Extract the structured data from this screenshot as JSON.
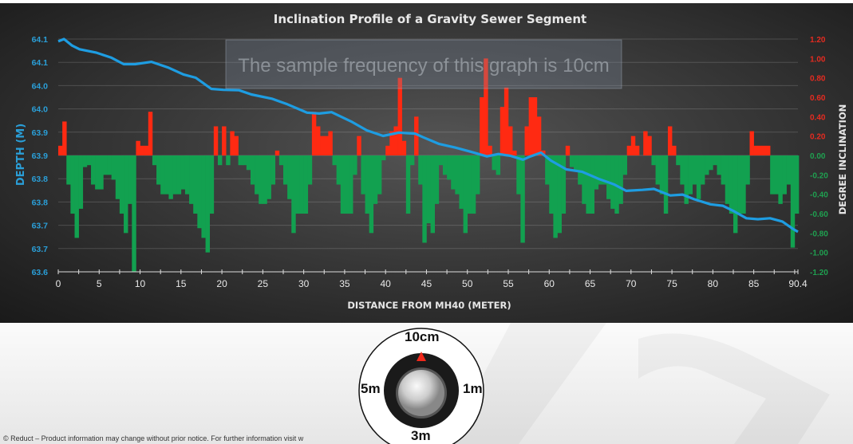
{
  "chart_data": {
    "type": "bar+line",
    "title": "Inclination Profile of a Gravity Sewer Segment",
    "annotation": "The sample frequency of this graph is 10cm",
    "xlabel": "DISTANCE FROM MH40 (METER)",
    "ylabel_left": "DEPTH (M)",
    "ylabel_right": "DEGREE INCLINATION",
    "xlim": [
      0,
      90.4
    ],
    "x_ticks": [
      "0",
      "5",
      "10",
      "15",
      "20",
      "25",
      "30",
      "35",
      "40",
      "45",
      "50",
      "55",
      "60",
      "65",
      "70",
      "75",
      "80",
      "85",
      "90.4"
    ],
    "ylim_left": [
      63.6,
      64.1
    ],
    "y_ticks_left": [
      "64.1",
      "64.1",
      "64.0",
      "64.0",
      "63.9",
      "63.9",
      "63.8",
      "63.8",
      "63.7",
      "63.7",
      "63.6"
    ],
    "ylim_right": [
      -1.2,
      1.2
    ],
    "y_ticks_right": [
      "1.20",
      "1.00",
      "0.80",
      "0.60",
      "0.40",
      "0.20",
      "0.00",
      "-0.20",
      "-0.40",
      "-0.60",
      "-0.80",
      "-1.00",
      "-1.20"
    ],
    "grid": true,
    "colors": {
      "depth_line": "#1e9de2",
      "positive": "#ff2a12",
      "negative": "#12a150",
      "left_axis": "#2a9fd8"
    },
    "depth": {
      "distance": [
        0,
        0.7,
        1.7,
        2.6,
        4.6,
        6.5,
        8,
        9.4,
        11.4,
        13.4,
        15.3,
        16.8,
        18.7,
        20.2,
        22.1,
        23.6,
        26.1,
        28,
        30.4,
        31.9,
        33.4,
        35.8,
        37.7,
        39.7,
        41.6,
        43.6,
        44.6,
        46.5,
        48.5,
        50.4,
        52.4,
        53.8,
        55.3,
        56.8,
        57.7,
        59,
        60.2,
        62.1,
        64,
        66,
        67.9,
        69.4,
        71.4,
        72.8,
        74.8,
        76.3,
        77.7,
        79.7,
        81.2,
        82.6,
        84.1,
        85.5,
        87,
        88.5,
        89.9,
        90.4
      ],
      "values": [
        64.095,
        64.1,
        64.086,
        64.078,
        64.071,
        64.06,
        64.046,
        64.046,
        64.051,
        64.039,
        64.024,
        64.017,
        63.993,
        63.991,
        63.99,
        63.981,
        63.972,
        63.96,
        63.942,
        63.94,
        63.943,
        63.923,
        63.904,
        63.892,
        63.899,
        63.897,
        63.889,
        63.875,
        63.867,
        63.858,
        63.848,
        63.853,
        63.849,
        63.841,
        63.848,
        63.856,
        63.839,
        63.82,
        63.815,
        63.8,
        63.788,
        63.774,
        63.776,
        63.778,
        63.764,
        63.766,
        63.756,
        63.745,
        63.742,
        63.73,
        63.715,
        63.713,
        63.715,
        63.708,
        63.691,
        63.686
      ]
    },
    "inclination": {
      "distance": [
        0,
        0.5,
        1,
        1.5,
        2,
        2.5,
        3,
        3.5,
        4,
        4.5,
        5,
        5.5,
        6,
        6.5,
        7,
        7.5,
        8,
        8.5,
        9,
        9.5,
        10,
        10.5,
        11,
        11.5,
        12,
        12.5,
        13,
        13.5,
        14,
        14.5,
        15,
        15.5,
        16,
        16.5,
        17,
        17.5,
        18,
        18.5,
        19,
        19.5,
        20,
        20.5,
        21,
        21.5,
        22,
        22.5,
        23,
        23.5,
        24,
        24.5,
        25,
        25.5,
        26,
        26.5,
        27,
        27.5,
        28,
        28.5,
        29,
        29.5,
        30,
        30.5,
        31,
        31.5,
        32,
        32.5,
        33,
        33.5,
        34,
        34.5,
        35,
        35.5,
        36,
        36.5,
        37,
        37.5,
        38,
        38.5,
        39,
        39.5,
        40,
        40.5,
        41,
        41.5,
        42,
        42.5,
        43,
        43.5,
        44,
        44.5,
        45,
        45.5,
        46,
        46.5,
        47,
        47.5,
        48,
        48.5,
        49,
        49.5,
        50,
        50.5,
        51,
        51.5,
        52,
        52.5,
        53,
        53.5,
        54,
        54.5,
        55,
        55.5,
        56,
        56.5,
        57,
        57.5,
        58,
        58.5,
        59,
        59.5,
        60,
        60.5,
        61,
        61.5,
        62,
        62.5,
        63,
        63.5,
        64,
        64.5,
        65,
        65.5,
        66,
        66.5,
        67,
        67.5,
        68,
        68.5,
        69,
        69.5,
        70,
        70.5,
        71,
        71.5,
        72,
        72.5,
        73,
        73.5,
        74,
        74.5,
        75,
        75.5,
        76,
        76.5,
        77,
        77.5,
        78,
        78.5,
        79,
        79.5,
        80,
        80.5,
        81,
        81.5,
        82,
        82.5,
        83,
        83.5,
        84,
        84.5,
        85,
        85.5,
        86,
        86.5,
        87,
        87.5,
        88,
        88.5,
        89,
        89.5,
        90
      ],
      "values": [
        0.1,
        0.35,
        -0.3,
        -0.6,
        -0.85,
        -0.55,
        -0.12,
        -0.1,
        -0.3,
        -0.35,
        -0.35,
        -0.2,
        -0.2,
        -0.25,
        -0.45,
        -0.6,
        -0.8,
        -0.5,
        -1.2,
        0.15,
        0.1,
        0.1,
        0.45,
        -0.1,
        -0.3,
        -0.4,
        -0.4,
        -0.45,
        -0.4,
        -0.4,
        -0.35,
        -0.4,
        -0.5,
        -0.6,
        -0.75,
        -0.85,
        -1.0,
        -0.6,
        0.3,
        -0.1,
        0.3,
        -0.1,
        0.25,
        0.2,
        -0.1,
        -0.1,
        -0.15,
        -0.3,
        -0.4,
        -0.5,
        -0.5,
        -0.45,
        -0.3,
        0.05,
        -0.1,
        -0.3,
        -0.45,
        -0.8,
        -0.6,
        -0.6,
        -0.6,
        -0.3,
        0.45,
        0.3,
        0.2,
        0.2,
        0.25,
        -0.1,
        -0.3,
        -0.6,
        -0.6,
        -0.6,
        -0.2,
        0.2,
        -0.4,
        -0.6,
        -0.8,
        -0.5,
        -0.4,
        -0.05,
        0.1,
        0.25,
        0.3,
        0.8,
        0.15,
        -0.6,
        -0.1,
        0.4,
        -0.3,
        -0.9,
        -0.7,
        -0.8,
        -0.5,
        -0.1,
        -0.2,
        -0.25,
        -0.35,
        -0.4,
        -0.55,
        -0.8,
        -0.6,
        -0.6,
        -0.4,
        0.6,
        1.0,
        0.1,
        -0.15,
        -0.2,
        0.5,
        0.7,
        0.3,
        0.05,
        -0.4,
        -0.9,
        0.3,
        0.6,
        0.6,
        0.4,
        0.05,
        -0.3,
        -0.6,
        -0.85,
        -0.8,
        -0.6,
        0.1,
        -0.12,
        -0.15,
        -0.3,
        -0.5,
        -0.6,
        -0.6,
        -0.35,
        -0.3,
        -0.3,
        -0.45,
        -0.55,
        -0.6,
        -0.5,
        -0.2,
        0.1,
        0.2,
        0.1,
        0,
        0.25,
        0.2,
        -0.1,
        -0.3,
        -0.4,
        -0.6,
        0.3,
        0.1,
        -0.1,
        -0.3,
        -0.5,
        -0.4,
        -0.3,
        -0.45,
        -0.3,
        -0.2,
        -0.15,
        -0.1,
        -0.2,
        -0.3,
        -0.5,
        -0.6,
        -0.8,
        -0.6,
        -0.6,
        -0.3,
        0.25,
        0.1,
        0.1,
        0.1,
        0.1,
        -0.4,
        -0.4,
        -0.5,
        -0.4,
        -0.3,
        -0.95,
        -0.6
      ]
    }
  },
  "dial": {
    "labels": {
      "top": "10cm",
      "left": "5m",
      "right": "1m",
      "bottom": "3m"
    },
    "selected": "10cm",
    "indicator_color": "#f0281a"
  },
  "footer": "© Reduct – Product information may change without prior notice. For further information visit w"
}
